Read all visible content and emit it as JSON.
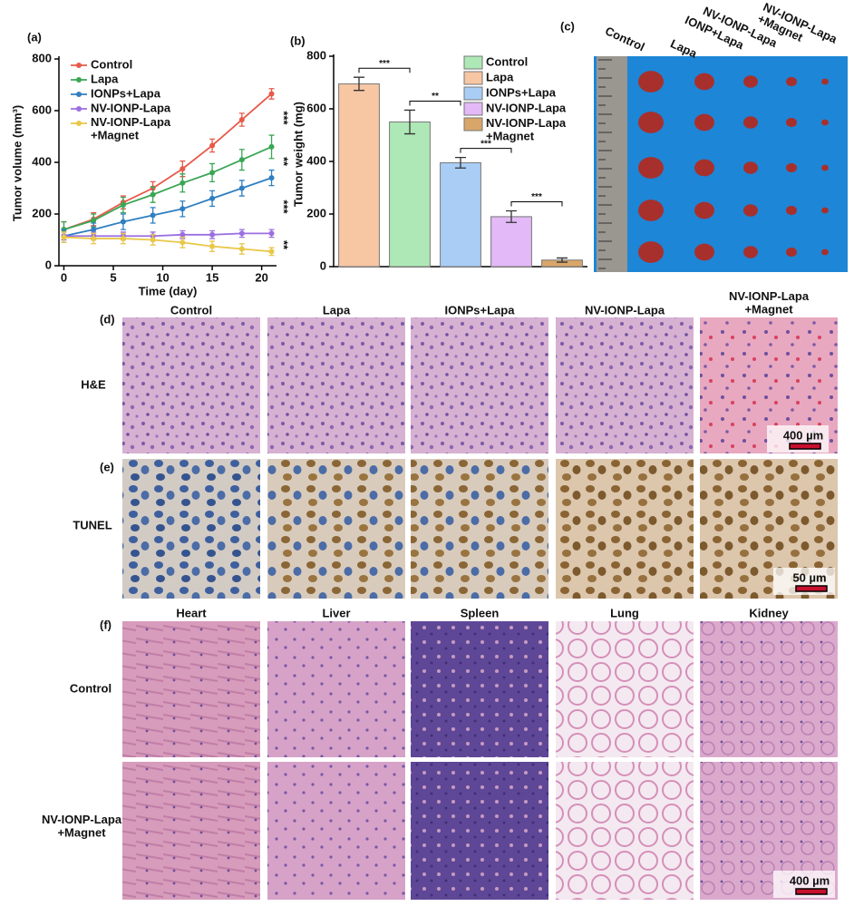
{
  "chart_data": [
    {
      "type": "line",
      "panel_label": "(a)",
      "x_label": "Time (day)",
      "y_label": "Tumor volume (mm³)",
      "x": [
        0,
        3,
        6,
        9,
        12,
        15,
        18,
        21
      ],
      "xlim": [
        -0.5,
        21.5
      ],
      "xticks": [
        0,
        5,
        10,
        15,
        20
      ],
      "ylim": [
        0,
        800
      ],
      "yticks": [
        0,
        200,
        400,
        600,
        800
      ],
      "series": [
        {
          "name": "Control",
          "color": "#e8594a",
          "values": [
            140,
            180,
            245,
            300,
            375,
            465,
            565,
            665
          ],
          "errors": [
            30,
            25,
            25,
            25,
            30,
            25,
            25,
            20
          ]
        },
        {
          "name": "Lapa",
          "color": "#3aa655",
          "values": [
            140,
            175,
            235,
            275,
            320,
            360,
            410,
            460
          ],
          "errors": [
            30,
            25,
            30,
            30,
            35,
            35,
            40,
            45
          ]
        },
        {
          "name": "IONPs+Lapa",
          "color": "#2f7fc1",
          "values": [
            115,
            140,
            170,
            195,
            220,
            260,
            300,
            340
          ],
          "errors": [
            25,
            25,
            30,
            30,
            30,
            30,
            30,
            30
          ]
        },
        {
          "name": "NV-IONP-Lapa",
          "color": "#9b6fe0",
          "values": [
            115,
            115,
            115,
            115,
            120,
            120,
            125,
            125
          ],
          "errors": [
            15,
            15,
            15,
            15,
            15,
            15,
            15,
            15
          ]
        },
        {
          "name": "NV-IONP-Lapa\n+Magnet",
          "color": "#e8c84a",
          "values": [
            110,
            105,
            105,
            100,
            90,
            75,
            65,
            55
          ],
          "errors": [
            20,
            20,
            20,
            20,
            20,
            20,
            20,
            15
          ]
        }
      ],
      "annotations": [
        "***",
        "**",
        "***",
        "**"
      ]
    },
    {
      "type": "bar",
      "panel_label": "(b)",
      "y_label": "Tumor weight (mg)",
      "values": [
        695,
        550,
        395,
        190,
        25
      ],
      "errors": [
        25,
        45,
        20,
        22,
        8
      ],
      "colors": [
        "#f7c6a3",
        "#aee8b6",
        "#a9cdf5",
        "#e3b9f7",
        "#d9a66a"
      ],
      "ylim": [
        0,
        800
      ],
      "yticks": [
        0,
        200,
        400,
        600,
        800
      ],
      "legend": [
        {
          "name": "Control",
          "color": "#aee8b6"
        },
        {
          "name": "Lapa",
          "color": "#f7c6a3"
        },
        {
          "name": "IONPs+Lapa",
          "color": "#a9cdf5"
        },
        {
          "name": "NV-IONP-Lapa",
          "color": "#e3b9f7"
        },
        {
          "name": "NV-IONP-Lapa\n+Magnet",
          "color": "#d9a66a"
        }
      ],
      "annotations": [
        "***",
        "**",
        "***",
        "***"
      ]
    }
  ],
  "panel_c": {
    "panel_label": "(c)",
    "column_labels": [
      "Control",
      "Lapa",
      "IONP+Lapa",
      "NV-IONP-Lapa",
      "NV-IONP-Lapa\n+Magnet"
    ]
  },
  "panel_d": {
    "panel_label": "(d)",
    "column_labels": [
      "Control",
      "Lapa",
      "IONPs+Lapa",
      "NV-IONP-Lapa",
      "NV-IONP-Lapa\n+Magnet"
    ],
    "row_label": "H&E",
    "scale_bar": "400 µm"
  },
  "panel_e": {
    "panel_label": "(e)",
    "row_label": "TUNEL",
    "scale_bar": "50 µm"
  },
  "panel_f": {
    "panel_label": "(f)",
    "column_labels": [
      "Heart",
      "Liver",
      "Spleen",
      "Lung",
      "Kidney"
    ],
    "row_labels": [
      "Control",
      "NV-IONP-Lapa\n+Magnet"
    ],
    "scale_bar": "400 µm"
  }
}
